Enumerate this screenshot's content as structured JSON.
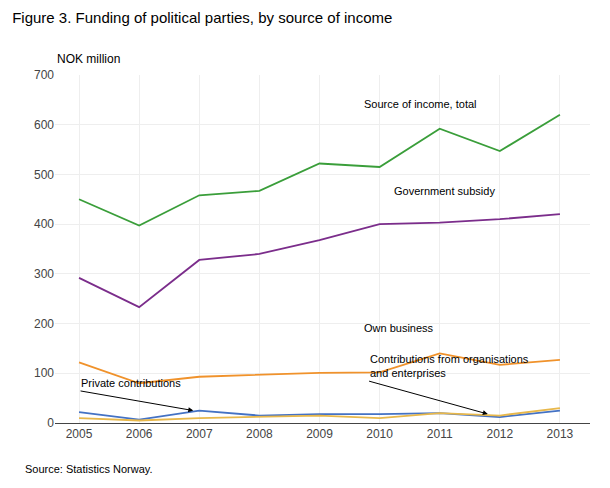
{
  "chart_data": {
    "type": "line",
    "title": "Figure 3. Funding of political parties, by source of income",
    "ylabel": "NOK million",
    "source": "Source: Statistics Norway.",
    "x": [
      2005,
      2006,
      2007,
      2008,
      2009,
      2010,
      2011,
      2012,
      2013
    ],
    "series": [
      {
        "color": "#3a9e3a",
        "values": [
          450,
          397,
          458,
          467,
          522,
          515,
          592,
          547,
          620
        ]
      },
      {
        "color": "#7b2d8b",
        "values": [
          292,
          233,
          328,
          340,
          368,
          400,
          403,
          410,
          420
        ]
      },
      {
        "color": "#f0922b",
        "values": [
          122,
          80,
          93,
          97,
          101,
          102,
          140,
          117,
          127
        ]
      },
      {
        "color": "#4472c4",
        "values": [
          22,
          7,
          25,
          15,
          18,
          18,
          20,
          12,
          25
        ]
      },
      {
        "color": "#e8b84b",
        "values": [
          10,
          5,
          10,
          12,
          15,
          10,
          20,
          15,
          30
        ]
      }
    ],
    "xlim": [
      2004.6,
      2013.5
    ],
    "xticks": [
      2005,
      2006,
      2007,
      2008,
      2009,
      2010,
      2011,
      2012,
      2013
    ],
    "ylim": [
      0,
      700
    ],
    "yticks": [
      0,
      100,
      200,
      300,
      400,
      500,
      600,
      700
    ],
    "grid": true,
    "annotations": [
      {
        "text": "Source of income, total",
        "x": 2009.7,
        "y": 625
      },
      {
        "text": "Government subsidy",
        "x": 2010.2,
        "y": 450
      },
      {
        "text": "Own business",
        "x": 2009.7,
        "y": 175
      },
      {
        "text": "Private contributions",
        "x": 2005.0,
        "y": 65,
        "arrow": {
          "x": 2006.9,
          "y": 25
        }
      },
      {
        "text": "Contributions from organisations\nand enterprises",
        "x": 2009.8,
        "y": 85,
        "arrow": {
          "x": 2011.8,
          "y": 18
        }
      }
    ]
  }
}
